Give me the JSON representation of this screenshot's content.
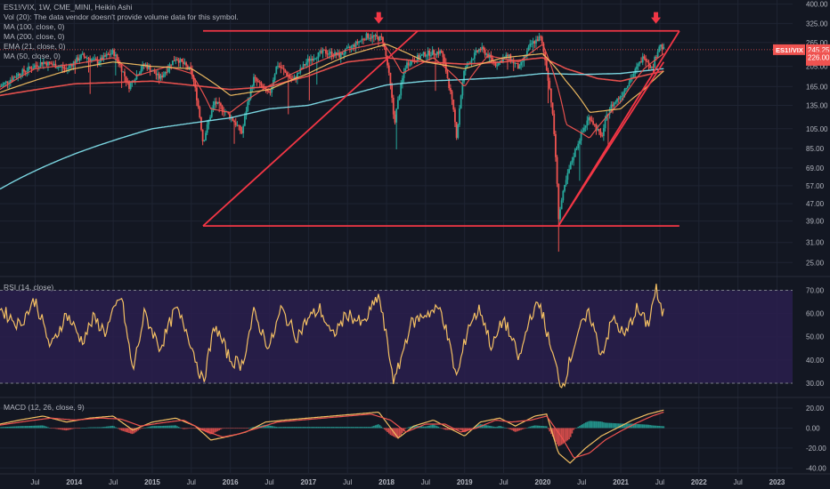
{
  "legend": {
    "main": [
      "ES1!/VIX, 1W, CME_MINI, Heikin Ashi",
      "Vol (20): The data vendor doesn't provide volume data for this symbol.",
      "MA (100, close, 0)",
      "MA (200, close, 0)",
      "EMA (21, close, 0)",
      "MA (50, close, 0)"
    ],
    "rsi": "RSI (14, close)",
    "macd": "MACD (12, 26, close, 9)"
  },
  "price_badges": {
    "last": {
      "symbol": "ES1!/VIX",
      "value": "245.25",
      "countdown": "1d 2h"
    },
    "ma": "226.00"
  },
  "colors": {
    "background": "#131722",
    "grid": "#1f2433",
    "candle_up": "#26a69a",
    "candle_down": "#ef5350",
    "pattern_lines": "#f23645",
    "ma100": "#ef5350",
    "ma200": "#80deea",
    "ema21": "#ef5350",
    "ma50": "#f4c063",
    "rsi_line": "#f4c063",
    "rsi_band": "#2a1f4d",
    "macd_line": "#f4c063",
    "signal_line": "#ef5350"
  },
  "chart_data": [
    {
      "type": "candlestick",
      "name": "price",
      "scale": "log",
      "y_ticks": [
        25,
        31,
        39,
        47,
        57,
        69,
        85,
        105,
        135,
        165,
        205,
        265,
        325,
        400
      ],
      "ylim": [
        23,
        410
      ],
      "x_labels": [
        "Jul",
        "2014",
        "Jul",
        "2015",
        "Jul",
        "2016",
        "Jul",
        "2017",
        "Jul",
        "2018",
        "Jul",
        "2019",
        "Jul",
        "2020",
        "Jul",
        "2021",
        "Jul",
        "2022",
        "Jul",
        "2023"
      ],
      "x_label_dates": [
        2013.5,
        2014.0,
        2014.5,
        2015.0,
        2015.5,
        2016.0,
        2016.5,
        2017.0,
        2017.5,
        2018.0,
        2018.5,
        2019.0,
        2019.5,
        2020.0,
        2020.5,
        2021.0,
        2021.5,
        2022.0,
        2022.5,
        2023.0
      ],
      "xlim": [
        2013.05,
        2023.2
      ],
      "close_path": [
        [
          2013.05,
          165
        ],
        [
          2013.3,
          190
        ],
        [
          2013.6,
          215
        ],
        [
          2013.9,
          200
        ],
        [
          2014.1,
          230
        ],
        [
          2014.3,
          215
        ],
        [
          2014.5,
          240
        ],
        [
          2014.7,
          165
        ],
        [
          2014.9,
          210
        ],
        [
          2015.1,
          180
        ],
        [
          2015.3,
          225
        ],
        [
          2015.5,
          195
        ],
        [
          2015.65,
          90
        ],
        [
          2015.8,
          140
        ],
        [
          2016.0,
          120
        ],
        [
          2016.15,
          100
        ],
        [
          2016.3,
          180
        ],
        [
          2016.5,
          150
        ],
        [
          2016.6,
          210
        ],
        [
          2016.8,
          175
        ],
        [
          2017.0,
          220
        ],
        [
          2017.2,
          240
        ],
        [
          2017.4,
          230
        ],
        [
          2017.6,
          260
        ],
        [
          2017.75,
          285
        ],
        [
          2017.95,
          275
        ],
        [
          2018.1,
          110
        ],
        [
          2018.25,
          210
        ],
        [
          2018.5,
          235
        ],
        [
          2018.7,
          240
        ],
        [
          2018.9,
          95
        ],
        [
          2019.0,
          200
        ],
        [
          2019.2,
          250
        ],
        [
          2019.4,
          210
        ],
        [
          2019.55,
          230
        ],
        [
          2019.7,
          200
        ],
        [
          2019.85,
          260
        ],
        [
          2019.97,
          280
        ],
        [
          2020.1,
          150
        ],
        [
          2020.2,
          40
        ],
        [
          2020.3,
          60
        ],
        [
          2020.45,
          90
        ],
        [
          2020.6,
          120
        ],
        [
          2020.75,
          95
        ],
        [
          2020.85,
          130
        ],
        [
          2021.0,
          150
        ],
        [
          2021.15,
          185
        ],
        [
          2021.3,
          230
        ],
        [
          2021.4,
          200
        ],
        [
          2021.5,
          260
        ],
        [
          2021.55,
          245
        ]
      ],
      "series": [
        {
          "name": "MA (100, close, 0)",
          "points": [
            [
              2013.05,
              150
            ],
            [
              2014.0,
              170
            ],
            [
              2015.0,
              175
            ],
            [
              2016.0,
              160
            ],
            [
              2016.5,
              165
            ],
            [
              2017.0,
              185
            ],
            [
              2017.5,
              215
            ],
            [
              2018.0,
              225
            ],
            [
              2018.5,
              215
            ],
            [
              2019.0,
              210
            ],
            [
              2019.5,
              215
            ],
            [
              2020.0,
              225
            ],
            [
              2020.3,
              200
            ],
            [
              2020.7,
              180
            ],
            [
              2021.0,
              175
            ],
            [
              2021.55,
              195
            ]
          ]
        },
        {
          "name": "MA (200, close, 0)",
          "points": [
            [
              2013.05,
              55
            ],
            [
              2014.0,
              80
            ],
            [
              2015.0,
              105
            ],
            [
              2016.0,
              118
            ],
            [
              2016.5,
              130
            ],
            [
              2017.0,
              135
            ],
            [
              2017.5,
              150
            ],
            [
              2018.0,
              168
            ],
            [
              2018.5,
              175
            ],
            [
              2019.0,
              178
            ],
            [
              2019.5,
              182
            ],
            [
              2020.0,
              190
            ],
            [
              2020.5,
              188
            ],
            [
              2021.0,
              190
            ],
            [
              2021.55,
              200
            ]
          ]
        },
        {
          "name": "EMA (21, close, 0)",
          "points": [
            [
              2013.05,
              160
            ],
            [
              2013.5,
              200
            ],
            [
              2014.0,
              210
            ],
            [
              2014.5,
              225
            ],
            [
              2014.8,
              185
            ],
            [
              2015.2,
              205
            ],
            [
              2015.5,
              190
            ],
            [
              2015.75,
              130
            ],
            [
              2016.0,
              125
            ],
            [
              2016.3,
              150
            ],
            [
              2016.6,
              175
            ],
            [
              2017.0,
              205
            ],
            [
              2017.5,
              245
            ],
            [
              2017.95,
              265
            ],
            [
              2018.2,
              190
            ],
            [
              2018.6,
              225
            ],
            [
              2019.0,
              165
            ],
            [
              2019.3,
              230
            ],
            [
              2019.7,
              215
            ],
            [
              2020.0,
              260
            ],
            [
              2020.3,
              110
            ],
            [
              2020.6,
              95
            ],
            [
              2021.0,
              140
            ],
            [
              2021.3,
              200
            ],
            [
              2021.55,
              235
            ]
          ]
        },
        {
          "name": "MA (50, close, 0)",
          "points": [
            [
              2013.05,
              155
            ],
            [
              2014.0,
              200
            ],
            [
              2014.5,
              215
            ],
            [
              2015.0,
              205
            ],
            [
              2015.5,
              200
            ],
            [
              2016.0,
              150
            ],
            [
              2016.5,
              160
            ],
            [
              2017.0,
              190
            ],
            [
              2017.5,
              230
            ],
            [
              2018.0,
              260
            ],
            [
              2018.5,
              215
            ],
            [
              2019.0,
              200
            ],
            [
              2019.5,
              225
            ],
            [
              2020.0,
              235
            ],
            [
              2020.3,
              175
            ],
            [
              2020.6,
              125
            ],
            [
              2021.0,
              130
            ],
            [
              2021.3,
              160
            ],
            [
              2021.55,
              195
            ]
          ]
        }
      ],
      "annotations": [
        {
          "type": "line",
          "from": [
            2015.65,
            37
          ],
          "to": [
            2018.4,
            300
          ]
        },
        {
          "type": "line",
          "from": [
            2015.65,
            37
          ],
          "to": [
            2021.75,
            37
          ]
        },
        {
          "type": "line",
          "from": [
            2015.65,
            300
          ],
          "to": [
            2021.75,
            300
          ]
        },
        {
          "type": "line",
          "from": [
            2020.2,
            37
          ],
          "to": [
            2021.75,
            300
          ]
        },
        {
          "type": "line",
          "from": [
            2020.2,
            37
          ],
          "to": [
            2021.55,
            215
          ]
        },
        {
          "type": "arrow-down",
          "at": [
            2017.9,
            340
          ]
        },
        {
          "type": "arrow-down",
          "at": [
            2021.45,
            340
          ]
        }
      ]
    },
    {
      "type": "line",
      "name": "RSI",
      "y_ticks": [
        30,
        40,
        50,
        60,
        70
      ],
      "ylim": [
        25,
        74
      ],
      "band": [
        30,
        70
      ],
      "points": [
        [
          2013.05,
          62
        ],
        [
          2013.3,
          55
        ],
        [
          2013.5,
          66
        ],
        [
          2013.7,
          45
        ],
        [
          2013.9,
          60
        ],
        [
          2014.1,
          48
        ],
        [
          2014.25,
          58
        ],
        [
          2014.4,
          52
        ],
        [
          2014.6,
          68
        ],
        [
          2014.75,
          35
        ],
        [
          2014.9,
          60
        ],
        [
          2015.1,
          45
        ],
        [
          2015.3,
          62
        ],
        [
          2015.45,
          52
        ],
        [
          2015.65,
          30
        ],
        [
          2015.8,
          55
        ],
        [
          2016.0,
          40
        ],
        [
          2016.15,
          38
        ],
        [
          2016.3,
          60
        ],
        [
          2016.5,
          45
        ],
        [
          2016.65,
          62
        ],
        [
          2016.85,
          50
        ],
        [
          2017.0,
          58
        ],
        [
          2017.15,
          62
        ],
        [
          2017.3,
          50
        ],
        [
          2017.5,
          60
        ],
        [
          2017.7,
          55
        ],
        [
          2017.9,
          68
        ],
        [
          2018.1,
          30
        ],
        [
          2018.3,
          55
        ],
        [
          2018.5,
          60
        ],
        [
          2018.7,
          62
        ],
        [
          2018.9,
          32
        ],
        [
          2019.05,
          55
        ],
        [
          2019.2,
          62
        ],
        [
          2019.35,
          45
        ],
        [
          2019.5,
          58
        ],
        [
          2019.7,
          40
        ],
        [
          2019.85,
          60
        ],
        [
          2019.97,
          64
        ],
        [
          2020.1,
          45
        ],
        [
          2020.25,
          28
        ],
        [
          2020.45,
          52
        ],
        [
          2020.6,
          60
        ],
        [
          2020.75,
          42
        ],
        [
          2020.9,
          58
        ],
        [
          2021.05,
          50
        ],
        [
          2021.2,
          62
        ],
        [
          2021.35,
          55
        ],
        [
          2021.45,
          71
        ],
        [
          2021.5,
          62
        ],
        [
          2021.55,
          60
        ]
      ]
    },
    {
      "type": "bar+line",
      "name": "MACD",
      "y_ticks": [
        -40,
        -20,
        0,
        20
      ],
      "ylim": [
        -45,
        28
      ],
      "macd": [
        [
          2013.05,
          4
        ],
        [
          2013.3,
          8
        ],
        [
          2013.6,
          12
        ],
        [
          2013.9,
          6
        ],
        [
          2014.2,
          10
        ],
        [
          2014.5,
          12
        ],
        [
          2014.75,
          -2
        ],
        [
          2015.0,
          6
        ],
        [
          2015.3,
          10
        ],
        [
          2015.55,
          2
        ],
        [
          2015.75,
          -12
        ],
        [
          2016.0,
          -8
        ],
        [
          2016.2,
          -4
        ],
        [
          2016.45,
          6
        ],
        [
          2016.7,
          8
        ],
        [
          2017.0,
          10
        ],
        [
          2017.3,
          12
        ],
        [
          2017.6,
          14
        ],
        [
          2017.9,
          16
        ],
        [
          2018.15,
          -10
        ],
        [
          2018.35,
          2
        ],
        [
          2018.6,
          8
        ],
        [
          2018.85,
          -2
        ],
        [
          2019.0,
          -8
        ],
        [
          2019.2,
          6
        ],
        [
          2019.45,
          10
        ],
        [
          2019.65,
          2
        ],
        [
          2019.9,
          12
        ],
        [
          2020.05,
          14
        ],
        [
          2020.2,
          -25
        ],
        [
          2020.35,
          -35
        ],
        [
          2020.55,
          -20
        ],
        [
          2020.75,
          -8
        ],
        [
          2020.95,
          0
        ],
        [
          2021.15,
          8
        ],
        [
          2021.35,
          14
        ],
        [
          2021.55,
          18
        ]
      ],
      "signal": [
        [
          2013.05,
          3
        ],
        [
          2013.4,
          7
        ],
        [
          2013.7,
          10
        ],
        [
          2014.0,
          8
        ],
        [
          2014.35,
          10
        ],
        [
          2014.6,
          9
        ],
        [
          2014.85,
          2
        ],
        [
          2015.1,
          5
        ],
        [
          2015.4,
          8
        ],
        [
          2015.65,
          -2
        ],
        [
          2015.9,
          -9
        ],
        [
          2016.1,
          -6
        ],
        [
          2016.35,
          0
        ],
        [
          2016.6,
          6
        ],
        [
          2016.9,
          8
        ],
        [
          2017.2,
          10
        ],
        [
          2017.5,
          12
        ],
        [
          2017.8,
          14
        ],
        [
          2018.05,
          8
        ],
        [
          2018.25,
          -4
        ],
        [
          2018.5,
          4
        ],
        [
          2018.75,
          4
        ],
        [
          2018.95,
          -4
        ],
        [
          2019.15,
          0
        ],
        [
          2019.4,
          8
        ],
        [
          2019.6,
          6
        ],
        [
          2019.85,
          8
        ],
        [
          2020.05,
          12
        ],
        [
          2020.25,
          -10
        ],
        [
          2020.4,
          -30
        ],
        [
          2020.6,
          -25
        ],
        [
          2020.8,
          -12
        ],
        [
          2021.0,
          -3
        ],
        [
          2021.2,
          5
        ],
        [
          2021.4,
          12
        ],
        [
          2021.55,
          16
        ]
      ]
    }
  ]
}
